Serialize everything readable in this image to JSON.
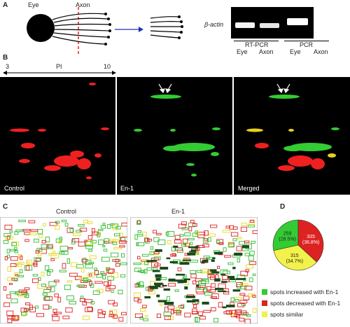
{
  "panels": {
    "a": {
      "label": "A",
      "eye_label": "Eye",
      "axon_label": "Axon",
      "beta_actin": "β-actin",
      "rtpcr": "RT-PCR",
      "pcr": "PCR",
      "lanes": [
        "Eye",
        "Axon",
        "Eye",
        "Axon"
      ]
    },
    "b": {
      "label": "B",
      "ph_start": "3",
      "ph_label": "PI",
      "ph_end": "10",
      "captions": [
        "Control",
        "En-1",
        "Merged"
      ]
    },
    "c": {
      "label": "C",
      "titles": [
        "Control",
        "En-1"
      ]
    },
    "d": {
      "label": "D"
    }
  },
  "chart_data": {
    "type": "pie",
    "categories": [
      "spots increased with En-1",
      "spots decreased with En-1",
      "spots similar"
    ],
    "values": [
      259,
      335,
      315
    ],
    "value_labels": [
      "259",
      "335",
      "315"
    ],
    "percent_labels": [
      "(28.5%)",
      "(36.8%)",
      "(34.7%)"
    ],
    "colors": [
      "#33cc33",
      "#dd2222",
      "#f2f24a"
    ]
  }
}
